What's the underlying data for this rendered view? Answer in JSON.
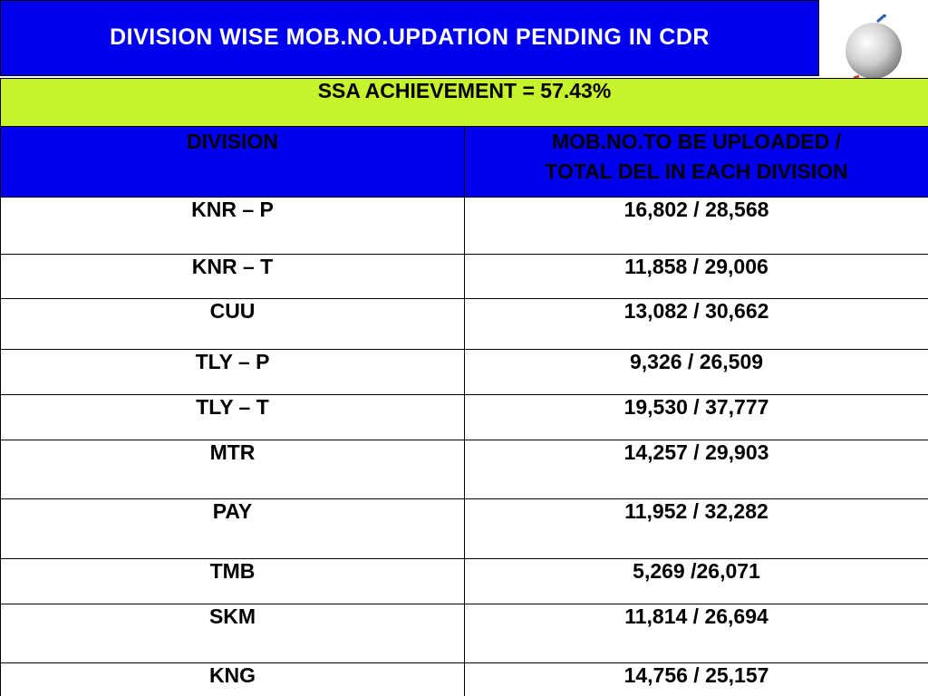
{
  "header": {
    "title": "DIVISION WISE MOB.NO.UPDATION PENDING IN CDR",
    "logo_icon": "globe-logo-icon",
    "colors": {
      "title_bg": "#0000ee",
      "achievement_bg": "#c6f32c",
      "header_bg": "#0000ee"
    }
  },
  "table": {
    "achievement": "SSA ACHIEVEMENT = 57.43%",
    "columns": {
      "division": "DIVISION",
      "mob_line1": "MOB.NO.TO BE UPLOADED /",
      "mob_line2": "TOTAL DEL IN EACH DIVISION"
    },
    "rows": [
      {
        "division": "KNR – P",
        "value": "16,802 / 28,568"
      },
      {
        "division": "KNR – T",
        "value": "11,858 / 29,006"
      },
      {
        "division": "CUU",
        "value": "13,082 / 30,662"
      },
      {
        "division": "TLY – P",
        "value": "9,326 / 26,509"
      },
      {
        "division": "TLY – T",
        "value": "19,530 / 37,777"
      },
      {
        "division": "MTR",
        "value": "14,257 / 29,903"
      },
      {
        "division": "PAY",
        "value": "11,952 / 32,282"
      },
      {
        "division": "TMB",
        "value": "5,269 /26,071"
      },
      {
        "division": "SKM",
        "value": "11,814 / 26,694"
      },
      {
        "division": "KNG",
        "value": "14,756 / 25,157"
      }
    ]
  }
}
